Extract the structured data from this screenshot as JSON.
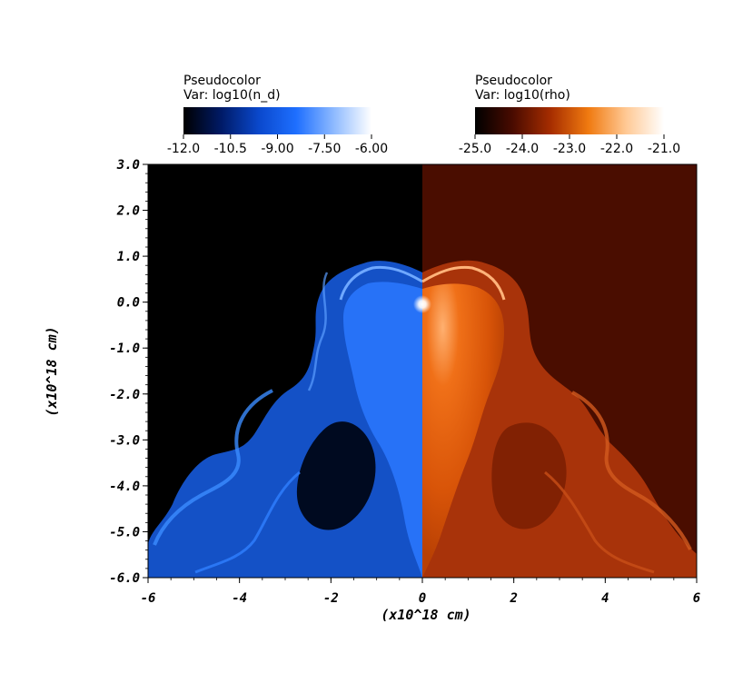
{
  "chart_data": {
    "type": "heatmap",
    "title": "",
    "xlabel": "(x10^18 cm)",
    "ylabel": "(x10^18 cm)",
    "xlim": [
      -6,
      6
    ],
    "ylim": [
      -6,
      3
    ],
    "x_ticks": [
      "-6",
      "-4",
      "-2",
      "0",
      "2",
      "4",
      "6"
    ],
    "x_tick_values": [
      -6,
      -4,
      -2,
      0,
      2,
      4,
      6
    ],
    "y_ticks": [
      "3.0",
      "2.0",
      "1.0",
      "0.0",
      "-1.0",
      "-2.0",
      "-3.0",
      "-4.0",
      "-5.0",
      "-6.0"
    ],
    "y_tick_values": [
      3,
      2,
      1,
      0,
      -1,
      -2,
      -3,
      -4,
      -5,
      -6
    ],
    "panels": [
      {
        "side": "left",
        "legend_title": "Pseudocolor",
        "legend_var": "Var: log10(n_d)",
        "colorbar_range": [
          -12,
          -6
        ],
        "colorbar_ticks": [
          "-12.0",
          "-10.5",
          "-9.00",
          "-7.50",
          "-6.00"
        ],
        "colorbar_tick_values": [
          -12,
          -10.5,
          -9,
          -7.5,
          -6
        ],
        "colors": [
          "#000000",
          "#001a66",
          "#0a48cc",
          "#1e6fff",
          "#8ebaff",
          "#ffffff"
        ]
      },
      {
        "side": "right",
        "legend_title": "Pseudocolor",
        "legend_var": "Var: log10(rho)",
        "colorbar_range": [
          -25,
          -21
        ],
        "colorbar_ticks": [
          "-25.0",
          "-24.0",
          "-23.0",
          "-22.0",
          "-21.0"
        ],
        "colorbar_tick_values": [
          -25,
          -24,
          -23,
          -22,
          -21
        ],
        "colors": [
          "#000000",
          "#4a0b00",
          "#a62d00",
          "#f07a10",
          "#ffc995",
          "#ffffff"
        ]
      }
    ],
    "grid": false
  }
}
